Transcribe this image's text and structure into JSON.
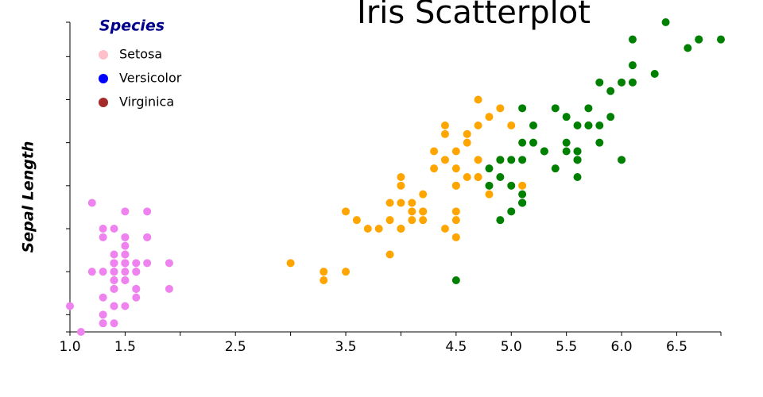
{
  "chart_data": {
    "type": "scatter",
    "title": "Iris Scatterplot",
    "y_label": "Sepal Length",
    "legend_title": "Species",
    "xlim": [
      1.0,
      6.9
    ],
    "xticks": [
      {
        "value": 1.0,
        "label": "1.0"
      },
      1.5,
      2.5,
      3.5,
      4.5,
      {
        "value": 5.0,
        "label": "5.0"
      },
      5.5,
      {
        "value": 6.0,
        "label": "6.0"
      },
      6.5
    ],
    "xminor_ticks": [
      2,
      3,
      4,
      6.9
    ],
    "ylim": [
      4.3,
      7.9
    ],
    "yminor_ticks": [
      4.3,
      4.5,
      5,
      5.5,
      6,
      6.5,
      7,
      7.5,
      7.9
    ],
    "series": [
      {
        "name": "Setosa",
        "color": "#ee82ee",
        "legend_color": "#ffc0cb",
        "x": [
          1.4,
          1.4,
          1.3,
          1.5,
          1.4,
          1.7,
          1.4,
          1.5,
          1.4,
          1.5,
          1.5,
          1.6,
          1.4,
          1.1,
          1.2,
          1.5,
          1.3,
          1.4,
          1.7,
          1.5,
          1.7,
          1.5,
          1.0,
          1.7,
          1.9,
          1.6,
          1.6,
          1.5,
          1.4,
          1.6,
          1.6,
          1.5,
          1.5,
          1.4,
          1.5,
          1.2,
          1.3,
          1.4,
          1.3,
          1.5,
          1.3,
          1.3,
          1.3,
          1.6,
          1.9,
          1.4,
          1.6,
          1.4,
          1.5,
          1.4
        ],
        "values": [
          5.1,
          4.9,
          4.7,
          4.6,
          5.0,
          5.4,
          4.6,
          5.0,
          4.4,
          4.9,
          5.4,
          4.8,
          4.8,
          4.3,
          5.8,
          5.7,
          5.4,
          5.1,
          5.7,
          5.1,
          5.4,
          5.1,
          4.6,
          5.1,
          4.8,
          5.0,
          5.0,
          5.2,
          5.2,
          4.7,
          4.8,
          5.4,
          5.2,
          5.5,
          4.9,
          5.0,
          5.5,
          4.9,
          4.4,
          5.1,
          5.0,
          4.5,
          4.4,
          5.0,
          5.1,
          4.8,
          5.1,
          4.6,
          5.3,
          5.0
        ]
      },
      {
        "name": "Versicolor",
        "color": "#ffa500",
        "legend_color": "#0000ff",
        "x": [
          4.7,
          4.5,
          4.9,
          4.0,
          4.6,
          4.5,
          4.7,
          3.3,
          4.6,
          3.9,
          3.5,
          4.2,
          4.0,
          4.7,
          3.6,
          4.4,
          4.5,
          4.1,
          4.5,
          3.9,
          4.8,
          4.0,
          4.9,
          4.7,
          4.3,
          4.4,
          4.8,
          5.0,
          4.5,
          3.5,
          3.8,
          3.7,
          3.9,
          5.1,
          4.5,
          4.5,
          4.7,
          4.4,
          4.1,
          4.0,
          4.4,
          4.6,
          4.0,
          3.3,
          4.2,
          4.2,
          4.2,
          4.3,
          3.0,
          4.1
        ],
        "values": [
          7.0,
          6.4,
          6.9,
          5.5,
          6.5,
          5.7,
          6.3,
          4.9,
          6.6,
          5.2,
          5.0,
          5.9,
          6.0,
          6.1,
          5.6,
          6.7,
          5.6,
          5.8,
          6.2,
          5.6,
          5.9,
          6.1,
          6.3,
          6.1,
          6.4,
          6.6,
          6.8,
          6.7,
          6.0,
          5.7,
          5.5,
          5.5,
          5.8,
          6.0,
          5.4,
          6.0,
          6.7,
          6.3,
          5.6,
          5.5,
          5.5,
          6.1,
          5.8,
          5.0,
          5.6,
          5.7,
          5.7,
          6.2,
          5.1,
          5.7
        ]
      },
      {
        "name": "Virginica",
        "color": "#008000",
        "legend_color": "#a52a2a",
        "x": [
          6.0,
          5.1,
          5.9,
          5.6,
          5.8,
          6.6,
          4.5,
          6.3,
          5.8,
          6.1,
          5.1,
          5.3,
          5.5,
          5.0,
          5.1,
          5.3,
          5.5,
          6.7,
          6.9,
          5.0,
          5.7,
          4.9,
          6.7,
          4.9,
          5.7,
          6.0,
          4.8,
          4.9,
          5.6,
          5.8,
          6.1,
          6.4,
          5.6,
          5.1,
          5.6,
          6.1,
          5.6,
          5.5,
          4.8,
          5.4,
          5.6,
          5.1,
          5.1,
          5.9,
          5.7,
          5.2,
          5.0,
          5.2,
          5.4,
          5.1
        ],
        "values": [
          6.3,
          5.8,
          7.1,
          6.3,
          6.5,
          7.6,
          4.9,
          7.3,
          6.7,
          7.2,
          6.5,
          6.4,
          6.8,
          5.7,
          5.8,
          6.4,
          6.5,
          7.7,
          7.7,
          6.0,
          6.9,
          5.6,
          7.7,
          6.3,
          6.7,
          7.2,
          6.2,
          6.1,
          6.4,
          7.2,
          7.4,
          7.9,
          6.4,
          6.3,
          6.1,
          7.7,
          6.3,
          6.4,
          6.0,
          6.9,
          6.7,
          6.9,
          5.8,
          6.8,
          6.7,
          6.7,
          6.3,
          6.5,
          6.2,
          5.9
        ]
      }
    ]
  }
}
